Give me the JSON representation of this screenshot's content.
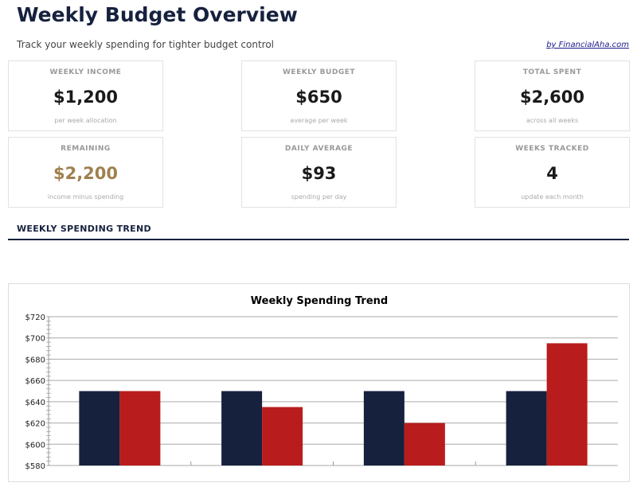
{
  "header": {
    "title": "Weekly Budget Overview",
    "subtitle": "Track your weekly spending for tighter budget control",
    "byline": "by FinancialAha.com"
  },
  "cards": [
    {
      "label": "WEEKLY INCOME",
      "value": "$1,200",
      "sub": "per week allocation"
    },
    {
      "label": "WEEKLY BUDGET",
      "value": "$650",
      "sub": "average per week"
    },
    {
      "label": "TOTAL SPENT",
      "value": "$2,600",
      "sub": "across all weeks"
    },
    {
      "label": "REMAINING",
      "value": "$2,200",
      "sub": "income minus spending",
      "color": "#a08050"
    },
    {
      "label": "DAILY AVERAGE",
      "value": "$93",
      "sub": "spending per day"
    },
    {
      "label": "WEEKS TRACKED",
      "value": "4",
      "sub": "update each month"
    }
  ],
  "section": {
    "title": "WEEKLY SPENDING TREND"
  },
  "chart_data": {
    "type": "bar",
    "title": "Weekly Spending Trend",
    "categories": [
      "",
      "",
      "",
      ""
    ],
    "series": [
      {
        "values": [
          650,
          650,
          650,
          650
        ],
        "color": "#16213e"
      },
      {
        "values": [
          650,
          635,
          620,
          695
        ],
        "color": "#b91c1c"
      }
    ],
    "ylim": [
      580,
      720
    ],
    "yticks": [
      "$580",
      "$600",
      "$620",
      "$640",
      "$660",
      "$680",
      "$700",
      "$720"
    ],
    "grid": true
  }
}
